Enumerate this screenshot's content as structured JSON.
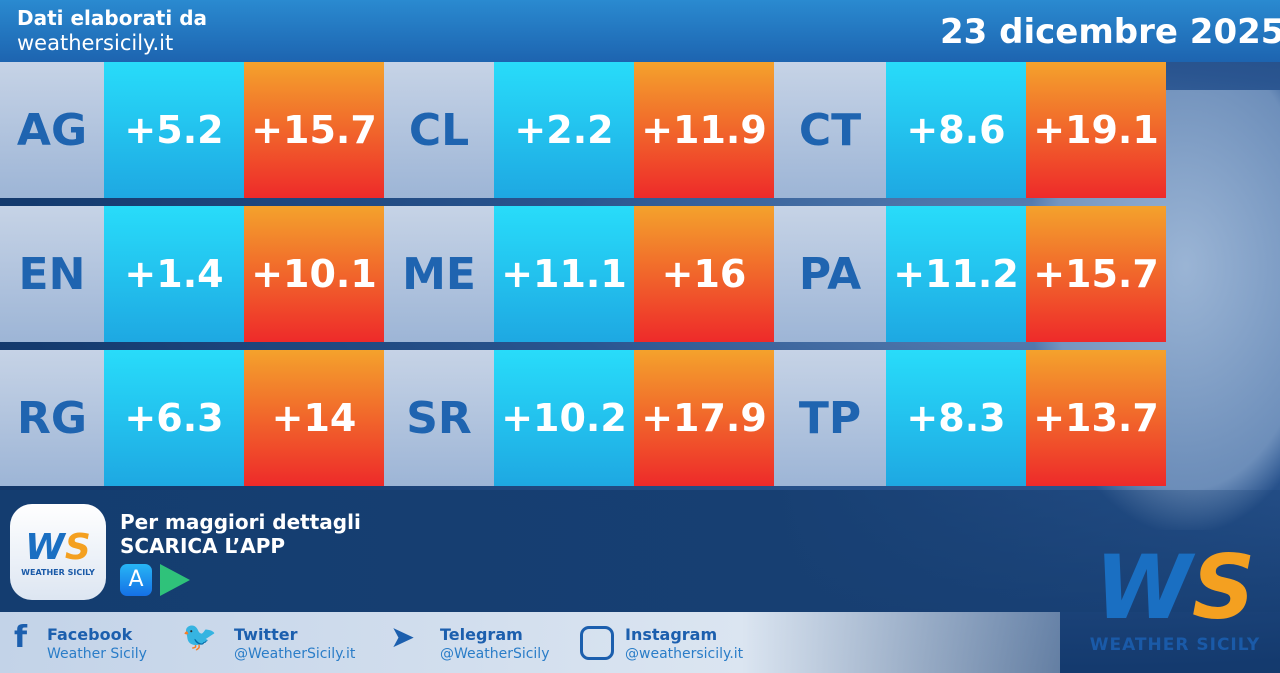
{
  "header": {
    "line1": "Dati elaborati da",
    "line2": "weathersicily.it",
    "date": "23 dicembre 2025"
  },
  "colors": {
    "min": "#1ea8e2",
    "max": "#ee2a2a",
    "label": "#1f64b0"
  },
  "rows": [
    [
      {
        "code": "AG",
        "min": "+5.2",
        "max": "+15.7"
      },
      {
        "code": "CL",
        "min": "+2.2",
        "max": "+11.9"
      },
      {
        "code": "CT",
        "min": "+8.6",
        "max": "+19.1"
      }
    ],
    [
      {
        "code": "EN",
        "min": "+1.4",
        "max": "+10.1"
      },
      {
        "code": "ME",
        "min": "+11.1",
        "max": "+16"
      },
      {
        "code": "PA",
        "min": "+11.2",
        "max": "+15.7"
      }
    ],
    [
      {
        "code": "RG",
        "min": "+6.3",
        "max": "+14"
      },
      {
        "code": "SR",
        "min": "+10.2",
        "max": "+17.9"
      },
      {
        "code": "TP",
        "min": "+8.3",
        "max": "+13.7"
      }
    ]
  ],
  "promo": {
    "line1": "Per maggiori dettagli",
    "line2": "SCARICA L’APP",
    "app_logo": "WS",
    "app_name": "WEATHER SICILY"
  },
  "social": [
    {
      "icon": "facebook-icon",
      "title": "Facebook",
      "handle": "Weather Sicily"
    },
    {
      "icon": "twitter-icon",
      "title": "Twitter",
      "handle": "@WeatherSicily.it"
    },
    {
      "icon": "telegram-icon",
      "title": "Telegram",
      "handle": "@WeatherSicily"
    },
    {
      "icon": "instagram-icon",
      "title": "Instagram",
      "handle": "@weathersicily.it"
    }
  ],
  "brand": {
    "logo": "WS",
    "name": "WEATHER SICILY"
  }
}
